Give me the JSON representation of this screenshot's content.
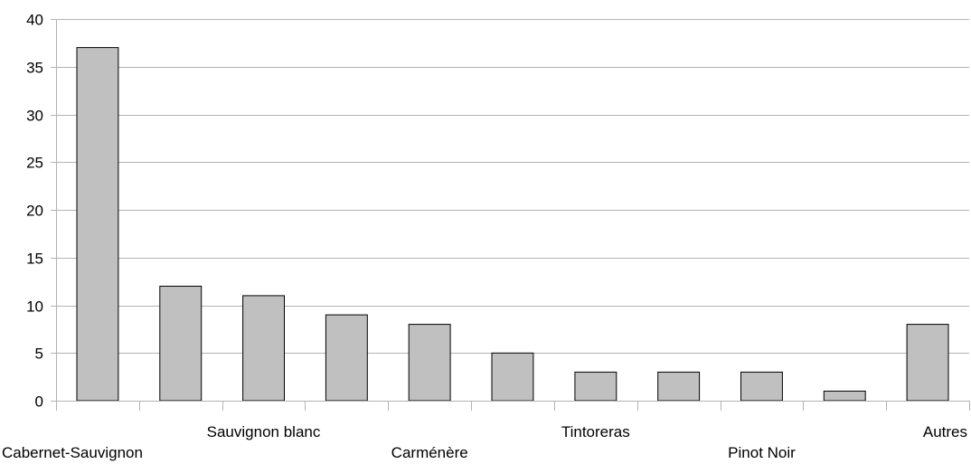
{
  "chart_data": {
    "type": "bar",
    "categories": [
      "Cabernet-Sauvignon",
      "",
      "Sauvignon blanc",
      "",
      "Carménère",
      "",
      "Tintoreras",
      "",
      "Pinot Noir",
      "",
      "Autres"
    ],
    "values": [
      37,
      12,
      11,
      9,
      8,
      5,
      3,
      3,
      3,
      1,
      8
    ],
    "ylim": [
      0,
      40
    ],
    "yticks": [
      0,
      5,
      10,
      15,
      20,
      25,
      30,
      35,
      40
    ],
    "grid": true,
    "legend": "none",
    "bar_color": "#c0c0c0",
    "bar_edge_color": "#000000",
    "grid_color": "#b3b3b3"
  }
}
